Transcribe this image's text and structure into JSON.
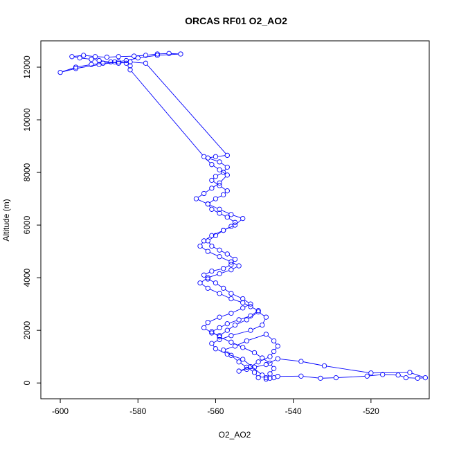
{
  "chart_data": {
    "type": "line",
    "title": "ORCAS RF01 O2_AO2",
    "xlabel": "O2_AO2",
    "ylabel": "Altitude (m)",
    "xlim": [
      -605,
      -505
    ],
    "ylim": [
      -600,
      13000
    ],
    "x_ticks": [
      -600,
      -580,
      -560,
      -540,
      -520
    ],
    "y_ticks": [
      0,
      2000,
      4000,
      6000,
      8000,
      10000,
      12000
    ],
    "grid": false,
    "legend": "none",
    "color": "#0000ff",
    "marker": "open-circle",
    "series": [
      {
        "points": [
          [
            -547,
            150
          ],
          [
            -546,
            180
          ],
          [
            -545,
            200
          ],
          [
            -544,
            250
          ],
          [
            -538,
            260
          ],
          [
            -533,
            180
          ],
          [
            -529,
            200
          ],
          [
            -521,
            260
          ],
          [
            -517,
            320
          ],
          [
            -513,
            300
          ],
          [
            -511,
            200
          ],
          [
            -508,
            180
          ],
          [
            -506,
            200
          ],
          [
            -510,
            400
          ],
          [
            -520,
            380
          ],
          [
            -532,
            650
          ],
          [
            -538,
            820
          ],
          [
            -544,
            920
          ],
          [
            -547,
            700
          ],
          [
            -550,
            600
          ],
          [
            -552,
            520
          ],
          [
            -554,
            450
          ],
          [
            -551,
            620
          ],
          [
            -549,
            800
          ],
          [
            -546,
            1000
          ],
          [
            -545,
            1200
          ],
          [
            -544,
            1400
          ],
          [
            -545,
            1600
          ],
          [
            -547,
            1850
          ],
          [
            -552,
            1600
          ],
          [
            -555,
            1400
          ],
          [
            -558,
            1250
          ],
          [
            -556,
            1050
          ],
          [
            -554,
            800
          ],
          [
            -552,
            600
          ],
          [
            -550,
            400
          ],
          [
            -549,
            200
          ],
          [
            -548,
            300
          ],
          [
            -553,
            900
          ],
          [
            -557,
            1100
          ],
          [
            -560,
            1300
          ],
          [
            -561,
            1500
          ],
          [
            -559,
            1650
          ],
          [
            -556,
            1800
          ],
          [
            -551,
            2000
          ],
          [
            -548,
            2200
          ],
          [
            -547,
            2500
          ],
          [
            -549,
            2700
          ],
          [
            -552,
            2400
          ],
          [
            -555,
            2200
          ],
          [
            -557,
            2000
          ],
          [
            -559,
            1800
          ],
          [
            -561,
            1900
          ],
          [
            -563,
            2100
          ],
          [
            -562,
            2300
          ],
          [
            -559,
            2500
          ],
          [
            -556,
            2650
          ],
          [
            -553,
            2850
          ],
          [
            -551,
            3000
          ],
          [
            -553,
            3200
          ],
          [
            -556,
            3400
          ],
          [
            -558,
            3600
          ],
          [
            -560,
            3800
          ],
          [
            -562,
            3950
          ],
          [
            -563,
            4100
          ],
          [
            -561,
            4250
          ],
          [
            -558,
            4350
          ],
          [
            -556,
            4500
          ],
          [
            -555,
            4700
          ],
          [
            -557,
            4900
          ],
          [
            -559,
            5050
          ],
          [
            -561,
            5200
          ],
          [
            -562,
            5400
          ],
          [
            -560,
            5600
          ],
          [
            -558,
            5800
          ],
          [
            -556,
            5950
          ],
          [
            -555,
            6100
          ],
          [
            -557,
            6300
          ],
          [
            -559,
            6450
          ],
          [
            -561,
            6600
          ],
          [
            -562,
            6800
          ],
          [
            -560,
            7000
          ],
          [
            -558,
            7150
          ],
          [
            -557,
            7300
          ],
          [
            -559,
            7500
          ],
          [
            -561,
            7700
          ],
          [
            -560,
            7850
          ],
          [
            -558,
            8000
          ],
          [
            -557,
            8200
          ],
          [
            -559,
            8400
          ],
          [
            -562,
            8550
          ],
          [
            -560,
            8600
          ],
          [
            -557,
            8650
          ],
          [
            -578,
            12150
          ],
          [
            -582,
            12200
          ],
          [
            -585,
            12150
          ],
          [
            -587,
            12200
          ],
          [
            -590,
            12250
          ],
          [
            -592,
            12300
          ],
          [
            -595,
            12350
          ],
          [
            -597,
            12400
          ],
          [
            -594,
            12450
          ],
          [
            -591,
            12400
          ],
          [
            -588,
            12380
          ],
          [
            -585,
            12400
          ],
          [
            -581,
            12420
          ],
          [
            -578,
            12450
          ],
          [
            -575,
            12500
          ],
          [
            -572,
            12520
          ],
          [
            -569,
            12500
          ],
          [
            -575,
            12450
          ],
          [
            -580,
            12350
          ],
          [
            -583,
            12250
          ],
          [
            -586,
            12200
          ],
          [
            -589,
            12150
          ],
          [
            -592,
            12100
          ],
          [
            -596,
            12000
          ],
          [
            -600,
            11800
          ],
          [
            -596,
            11950
          ],
          [
            -590,
            12100
          ],
          [
            -585,
            12200
          ],
          [
            -583,
            12150
          ],
          [
            -582,
            12050
          ],
          [
            -582,
            11900
          ],
          [
            -563,
            8600
          ],
          [
            -561,
            8300
          ],
          [
            -559,
            8100
          ],
          [
            -557,
            7900
          ],
          [
            -559,
            7600
          ],
          [
            -561,
            7400
          ],
          [
            -563,
            7200
          ],
          [
            -565,
            7000
          ],
          [
            -562,
            6800
          ],
          [
            -559,
            6600
          ],
          [
            -556,
            6400
          ],
          [
            -553,
            6250
          ],
          [
            -555,
            6000
          ],
          [
            -558,
            5800
          ],
          [
            -561,
            5600
          ],
          [
            -563,
            5400
          ],
          [
            -564,
            5200
          ],
          [
            -562,
            5000
          ],
          [
            -559,
            4800
          ],
          [
            -556,
            4600
          ],
          [
            -554,
            4450
          ],
          [
            -556,
            4300
          ],
          [
            -559,
            4150
          ],
          [
            -562,
            4000
          ],
          [
            -564,
            3800
          ],
          [
            -562,
            3600
          ],
          [
            -559,
            3400
          ],
          [
            -556,
            3200
          ],
          [
            -553,
            3050
          ],
          [
            -551,
            2900
          ],
          [
            -549,
            2750
          ],
          [
            -551,
            2550
          ],
          [
            -554,
            2400
          ],
          [
            -557,
            2250
          ],
          [
            -559,
            2100
          ],
          [
            -561,
            1950
          ],
          [
            -559,
            1750
          ],
          [
            -556,
            1550
          ],
          [
            -553,
            1350
          ],
          [
            -550,
            1150
          ],
          [
            -548,
            950
          ],
          [
            -546,
            750
          ],
          [
            -545,
            550
          ],
          [
            -546,
            350
          ],
          [
            -547,
            200
          ]
        ]
      }
    ]
  }
}
